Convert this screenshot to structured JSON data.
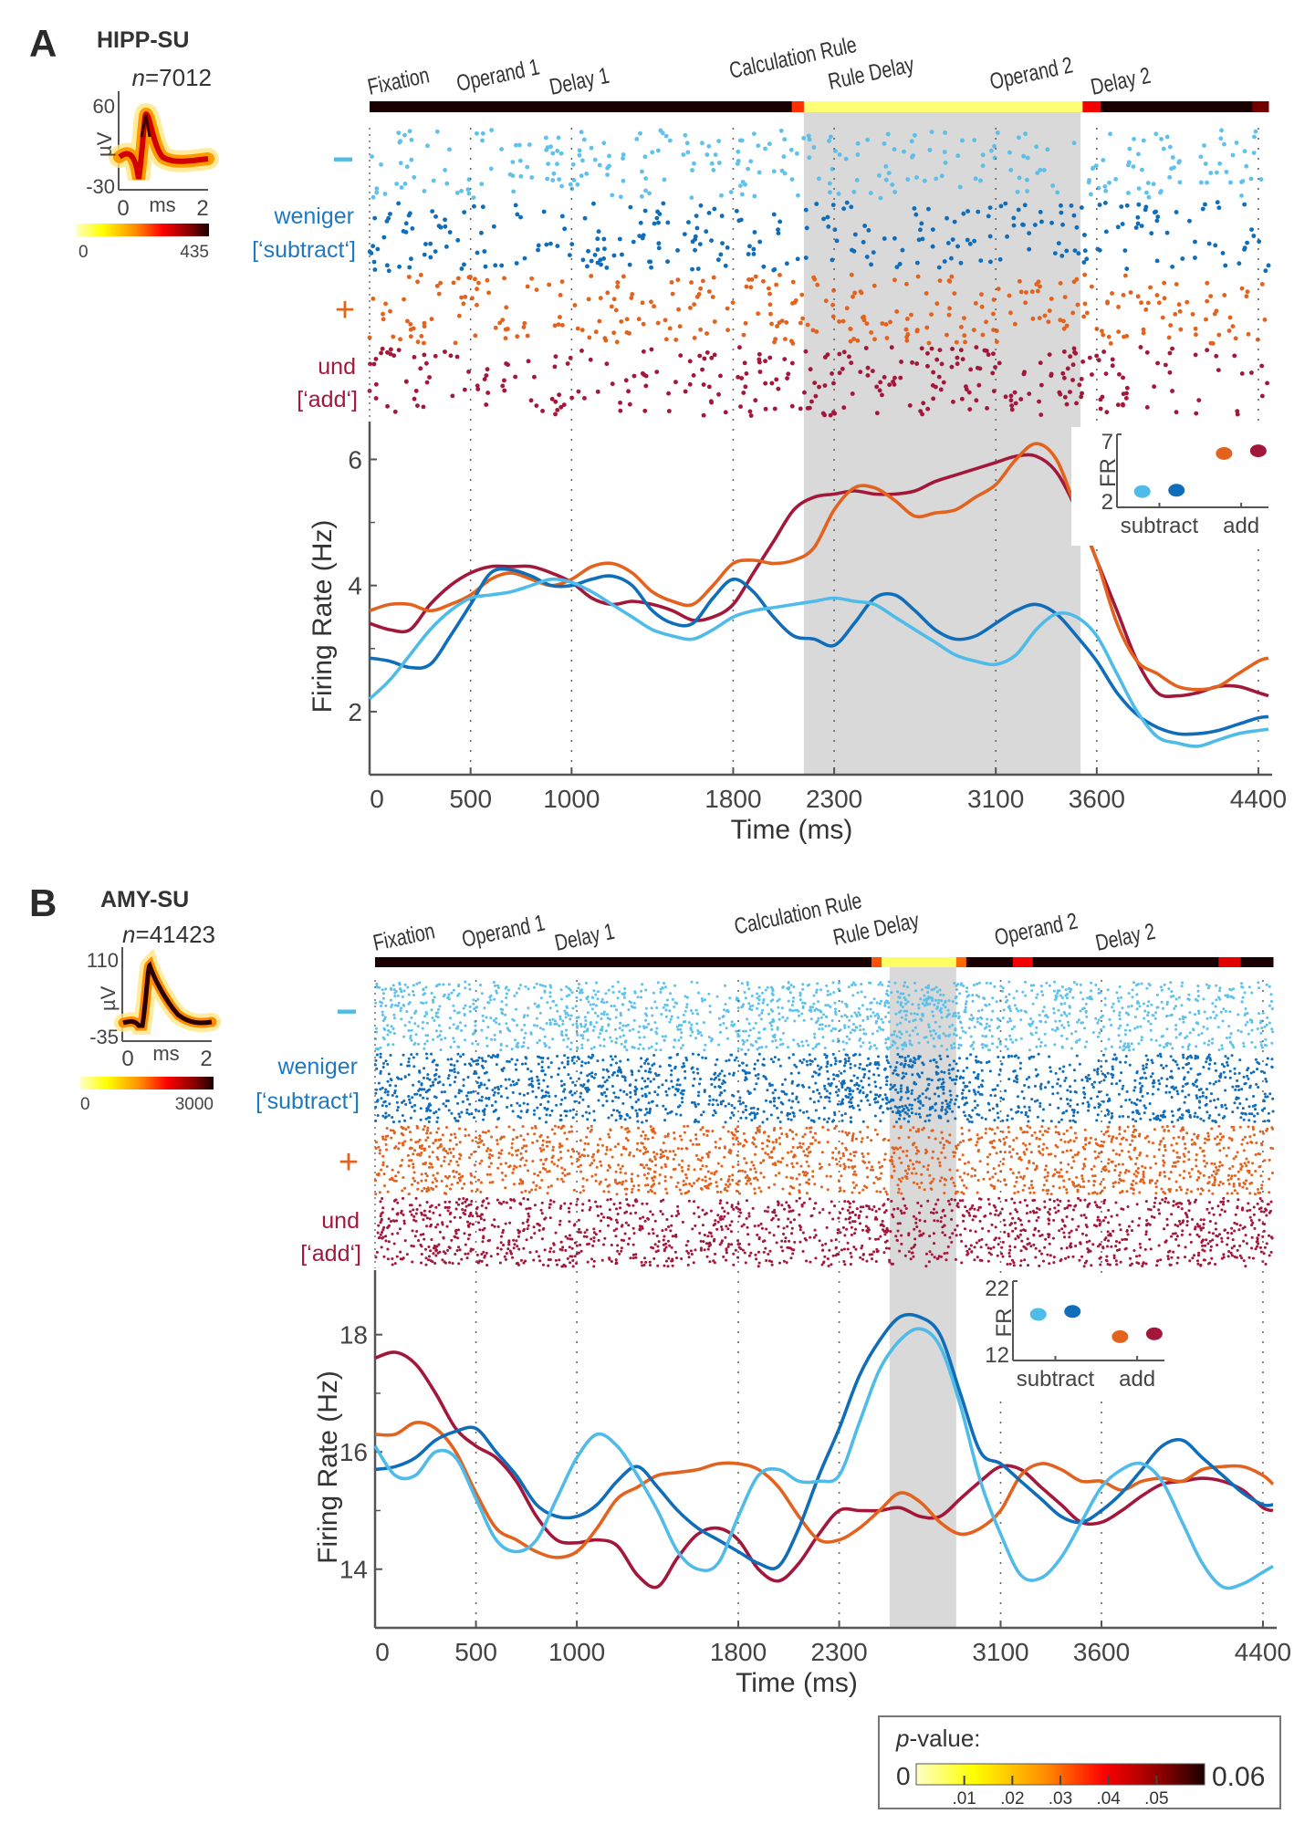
{
  "figure": {
    "panels": [
      {
        "letter": "A",
        "region": "HIPP-SU",
        "n_prefix": "n",
        "n_value": "=7012",
        "waveform": {
          "ylim_labels": [
            "60",
            "-30"
          ],
          "ylabel": "µV",
          "xlabels": [
            "0",
            "ms",
            "2"
          ],
          "colorbar_min": "0",
          "colorbar_max": "435"
        },
        "condition_labels": {
          "minus_symbol": "−",
          "subtract_word": "weniger",
          "subtract_tag": "[‘subtract‘]",
          "plus_symbol": "+",
          "add_word": "und",
          "add_tag": "[‘add‘]"
        },
        "epochs": [
          "Fixation",
          "Operand 1",
          "Delay 1",
          "Calculation Rule",
          "Rule Delay",
          "Operand 2",
          "Delay 2"
        ]
      },
      {
        "letter": "B",
        "region": "AMY-SU",
        "n_prefix": "n",
        "n_value": "=41423",
        "waveform": {
          "ylim_labels": [
            "110",
            "-35"
          ],
          "ylabel": "µV",
          "xlabels": [
            "0",
            "ms",
            "2"
          ],
          "colorbar_min": "0",
          "colorbar_max": "3000"
        },
        "condition_labels": {
          "minus_symbol": "−",
          "subtract_word": "weniger",
          "subtract_tag": "[‘subtract‘]",
          "plus_symbol": "+",
          "add_word": "und",
          "add_tag": "[‘add‘]"
        },
        "epochs": [
          "Fixation",
          "Operand 1",
          "Delay 1",
          "Calculation Rule",
          "Rule Delay",
          "Operand 2",
          "Delay 2"
        ]
      }
    ],
    "pvalue_legend": {
      "title_italic": "p",
      "title_rest": "-value:",
      "min_label": "0",
      "max_label": "0.06",
      "tick_labels": [
        ".01",
        ".02",
        ".03",
        ".04",
        ".05"
      ]
    },
    "colors": {
      "subtract_light": "#4fbbe9",
      "subtract_dark": "#0f6db9",
      "add_orange": "#e3621e",
      "add_crimson": "#a3173b",
      "significance_band": "#d9d9d9",
      "axis": "#555555"
    }
  },
  "chart_data": [
    {
      "type": "line",
      "title": "HIPP-SU",
      "xlabel": "Time (ms)",
      "ylabel": "Firing Rate (Hz)",
      "xlim": [
        0,
        4450
      ],
      "ylim": [
        1,
        6.6
      ],
      "xticks": [
        0,
        500,
        1000,
        1800,
        2300,
        3100,
        3600,
        4400
      ],
      "yticks": [
        2,
        4,
        6
      ],
      "yminor": [
        3,
        5
      ],
      "epoch_boundaries": [
        500,
        1000,
        1800,
        2300,
        3100,
        3600,
        4400
      ],
      "significant_window_ms": [
        2150,
        3520
      ],
      "pvalue_bar": [
        {
          "from": 0,
          "to": 2090,
          "p": 0.06
        },
        {
          "from": 2090,
          "to": 2150,
          "p": 0.035
        },
        {
          "from": 2150,
          "to": 3530,
          "p": 0.005
        },
        {
          "from": 3530,
          "to": 3620,
          "p": 0.04
        },
        {
          "from": 3620,
          "to": 4370,
          "p": 0.06
        },
        {
          "from": 4370,
          "to": 4450,
          "p": 0.053
        }
      ],
      "x": [
        0,
        100,
        200,
        300,
        400,
        500,
        600,
        700,
        800,
        900,
        1000,
        1100,
        1200,
        1300,
        1400,
        1500,
        1600,
        1700,
        1800,
        1900,
        2000,
        2100,
        2200,
        2300,
        2400,
        2500,
        2600,
        2700,
        2800,
        2900,
        3000,
        3100,
        3200,
        3300,
        3400,
        3500,
        3600,
        3700,
        3800,
        3900,
        4000,
        4100,
        4200,
        4300,
        4400,
        4450
      ],
      "series": [
        {
          "name": "subtract (light)",
          "color_key": "subtract_light",
          "values": [
            2.2,
            2.5,
            2.9,
            3.3,
            3.6,
            3.8,
            3.85,
            3.9,
            4.0,
            4.1,
            4.05,
            3.9,
            3.7,
            3.5,
            3.3,
            3.2,
            3.15,
            3.3,
            3.5,
            3.6,
            3.65,
            3.7,
            3.75,
            3.8,
            3.75,
            3.7,
            3.5,
            3.3,
            3.1,
            2.9,
            2.8,
            2.75,
            2.9,
            3.3,
            3.55,
            3.5,
            3.2,
            2.6,
            2.0,
            1.6,
            1.5,
            1.45,
            1.55,
            1.65,
            1.7,
            1.72
          ]
        },
        {
          "name": "subtract (dark)",
          "color_key": "subtract_dark",
          "values": [
            2.85,
            2.8,
            2.7,
            2.75,
            3.2,
            3.7,
            4.2,
            4.25,
            4.15,
            4.0,
            4.0,
            4.1,
            4.15,
            4.0,
            3.6,
            3.4,
            3.4,
            3.8,
            4.1,
            3.9,
            3.5,
            3.2,
            3.15,
            3.05,
            3.4,
            3.8,
            3.85,
            3.6,
            3.3,
            3.15,
            3.2,
            3.4,
            3.6,
            3.7,
            3.55,
            3.2,
            2.8,
            2.3,
            1.95,
            1.75,
            1.65,
            1.65,
            1.7,
            1.8,
            1.9,
            1.92
          ]
        },
        {
          "name": "add (orange)",
          "color_key": "add_orange",
          "values": [
            3.6,
            3.7,
            3.7,
            3.6,
            3.7,
            3.85,
            4.1,
            4.2,
            4.1,
            4.0,
            4.1,
            4.3,
            4.35,
            4.2,
            3.9,
            3.75,
            3.7,
            4.0,
            4.35,
            4.4,
            4.35,
            4.4,
            4.6,
            5.2,
            5.55,
            5.55,
            5.35,
            5.1,
            5.15,
            5.2,
            5.4,
            5.6,
            6.0,
            6.25,
            6.0,
            5.2,
            4.4,
            3.4,
            2.8,
            2.6,
            2.4,
            2.35,
            2.4,
            2.6,
            2.8,
            2.85
          ]
        },
        {
          "name": "add (crimson)",
          "color_key": "add_crimson",
          "values": [
            3.4,
            3.3,
            3.3,
            3.7,
            4.0,
            4.2,
            4.3,
            4.3,
            4.3,
            4.2,
            4.05,
            3.8,
            3.7,
            3.75,
            3.7,
            3.6,
            3.45,
            3.5,
            3.7,
            4.2,
            4.7,
            5.2,
            5.4,
            5.45,
            5.5,
            5.45,
            5.45,
            5.5,
            5.65,
            5.75,
            5.85,
            5.95,
            6.05,
            6.05,
            5.8,
            5.2,
            4.4,
            3.6,
            2.8,
            2.3,
            2.25,
            2.3,
            2.4,
            2.4,
            2.3,
            2.25
          ]
        }
      ],
      "inset": {
        "type": "scatter",
        "ylabel": "FR",
        "ylim": [
          2,
          7
        ],
        "yticks": [
          2,
          7
        ],
        "categories": [
          "subtract",
          "add"
        ],
        "points": [
          {
            "category": "subtract",
            "offset": -0.25,
            "value": 3.2,
            "color_key": "subtract_light"
          },
          {
            "category": "subtract",
            "offset": 0.25,
            "value": 3.3,
            "color_key": "subtract_dark"
          },
          {
            "category": "add",
            "offset": -0.25,
            "value": 6.1,
            "color_key": "add_orange"
          },
          {
            "category": "add",
            "offset": 0.25,
            "value": 6.3,
            "color_key": "add_crimson"
          }
        ]
      }
    },
    {
      "type": "line",
      "title": "AMY-SU",
      "xlabel": "Time (ms)",
      "ylabel": "Firing Rate (Hz)",
      "xlim": [
        0,
        4450
      ],
      "ylim": [
        13,
        19.1
      ],
      "xticks": [
        0,
        500,
        1000,
        1800,
        2300,
        3100,
        3600,
        4400
      ],
      "yticks": [
        14,
        16,
        18
      ],
      "yminor": [
        15,
        17
      ],
      "epoch_boundaries": [
        500,
        1000,
        1800,
        2300,
        3100,
        3600,
        4400
      ],
      "significant_window_ms": [
        2550,
        2880
      ],
      "pvalue_bar": [
        {
          "from": 0,
          "to": 2460,
          "p": 0.06
        },
        {
          "from": 2460,
          "to": 2510,
          "p": 0.032
        },
        {
          "from": 2510,
          "to": 2880,
          "p": 0.006
        },
        {
          "from": 2880,
          "to": 2930,
          "p": 0.03
        },
        {
          "from": 2930,
          "to": 3160,
          "p": 0.06
        },
        {
          "from": 3160,
          "to": 3260,
          "p": 0.04
        },
        {
          "from": 3260,
          "to": 4180,
          "p": 0.06
        },
        {
          "from": 4180,
          "to": 4290,
          "p": 0.042
        },
        {
          "from": 4290,
          "to": 4450,
          "p": 0.06
        }
      ],
      "x": [
        0,
        100,
        200,
        300,
        400,
        500,
        600,
        700,
        800,
        900,
        1000,
        1100,
        1200,
        1300,
        1400,
        1500,
        1600,
        1700,
        1800,
        1900,
        2000,
        2100,
        2200,
        2300,
        2400,
        2500,
        2600,
        2700,
        2800,
        2900,
        3000,
        3100,
        3200,
        3300,
        3400,
        3500,
        3600,
        3700,
        3800,
        3900,
        4000,
        4100,
        4200,
        4300,
        4400,
        4450
      ],
      "series": [
        {
          "name": "subtract (light)",
          "color_key": "subtract_light",
          "values": [
            16.1,
            15.6,
            15.6,
            16.0,
            15.9,
            15.2,
            14.5,
            14.3,
            14.5,
            15.2,
            15.9,
            16.3,
            16.1,
            15.6,
            15.0,
            14.3,
            14.0,
            14.1,
            14.9,
            15.6,
            15.7,
            15.5,
            15.5,
            15.6,
            16.5,
            17.4,
            17.9,
            18.1,
            17.8,
            16.8,
            15.5,
            14.6,
            13.9,
            13.85,
            14.2,
            14.8,
            15.4,
            15.7,
            15.8,
            15.5,
            14.8,
            14.1,
            13.7,
            13.75,
            13.95,
            14.05
          ]
        },
        {
          "name": "subtract (dark)",
          "color_key": "subtract_dark",
          "values": [
            15.7,
            15.75,
            15.9,
            16.2,
            16.35,
            16.4,
            16.0,
            15.6,
            15.1,
            14.9,
            14.9,
            15.1,
            15.5,
            15.75,
            15.4,
            15.0,
            14.7,
            14.5,
            14.3,
            14.1,
            14.05,
            14.7,
            15.6,
            16.4,
            17.3,
            17.9,
            18.3,
            18.3,
            18.0,
            17.0,
            16.0,
            15.8,
            15.5,
            15.2,
            14.9,
            14.8,
            15.0,
            15.3,
            15.7,
            16.1,
            16.2,
            15.9,
            15.6,
            15.3,
            15.1,
            15.1
          ]
        },
        {
          "name": "add (orange)",
          "color_key": "add_orange",
          "values": [
            16.3,
            16.3,
            16.5,
            16.4,
            16.0,
            15.3,
            14.7,
            14.5,
            14.3,
            14.2,
            14.3,
            14.7,
            15.2,
            15.4,
            15.6,
            15.65,
            15.7,
            15.8,
            15.8,
            15.7,
            15.4,
            14.9,
            14.5,
            14.5,
            14.7,
            15.0,
            15.3,
            15.15,
            14.8,
            14.6,
            14.7,
            15.0,
            15.6,
            15.8,
            15.7,
            15.5,
            15.5,
            15.35,
            15.5,
            15.55,
            15.5,
            15.7,
            15.75,
            15.75,
            15.6,
            15.45
          ]
        },
        {
          "name": "add (crimson)",
          "color_key": "add_crimson",
          "values": [
            17.6,
            17.7,
            17.5,
            17.0,
            16.4,
            16.1,
            15.9,
            15.5,
            14.9,
            14.5,
            14.45,
            14.5,
            14.4,
            13.9,
            13.7,
            14.2,
            14.6,
            14.7,
            14.5,
            14.0,
            13.8,
            14.1,
            14.6,
            15.0,
            15.0,
            15.0,
            15.05,
            14.9,
            14.9,
            15.2,
            15.5,
            15.75,
            15.7,
            15.4,
            15.1,
            14.8,
            14.8,
            15.0,
            15.25,
            15.45,
            15.5,
            15.55,
            15.5,
            15.35,
            15.05,
            15.0
          ]
        }
      ],
      "inset": {
        "type": "scatter",
        "ylabel": "FR",
        "ylim": [
          12,
          22
        ],
        "yticks": [
          12,
          22
        ],
        "categories": [
          "subtract",
          "add"
        ],
        "points": [
          {
            "category": "subtract",
            "offset": -0.25,
            "value": 18.4,
            "color_key": "subtract_light"
          },
          {
            "category": "subtract",
            "offset": 0.25,
            "value": 18.8,
            "color_key": "subtract_dark"
          },
          {
            "category": "add",
            "offset": -0.25,
            "value": 15.3,
            "color_key": "add_orange"
          },
          {
            "category": "add",
            "offset": 0.25,
            "value": 15.7,
            "color_key": "add_crimson"
          }
        ]
      }
    }
  ]
}
